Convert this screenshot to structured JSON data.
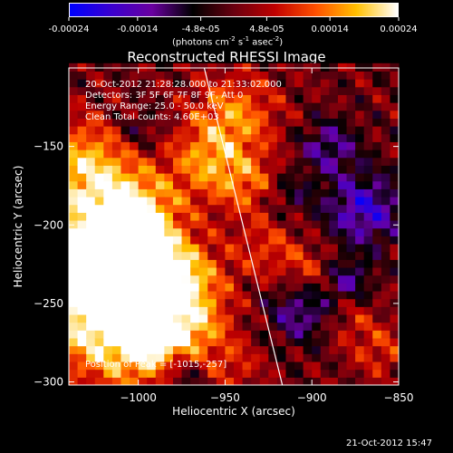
{
  "colorbar": {
    "tick_labels": [
      "-0.00024",
      "-0.00014",
      "-4.8e-05",
      "4.8e-05",
      "0.00014",
      "0.00024"
    ],
    "tick_values": [
      -0.00024,
      -0.00014,
      -4.8e-05,
      4.8e-05,
      0.00014,
      0.00024
    ],
    "range": [
      -0.00024,
      0.00024
    ],
    "unit_prefix": "(photons cm",
    "unit_exp1": "-2",
    "unit_mid": " s",
    "unit_exp2": "-1",
    "unit_mid2": " asec",
    "unit_exp3": "-2",
    "unit_suffix": ")",
    "colormap": [
      "#0000ff",
      "#3a00d0",
      "#6a00a0",
      "#000000",
      "#6a0010",
      "#c00000",
      "#ff5000",
      "#ffc000",
      "#ffffff"
    ]
  },
  "chart_data": {
    "type": "heatmap",
    "title": "Reconstructed RHESSI Image",
    "xlabel": "Heliocentric X (arcsec)",
    "ylabel": "Heliocentric Y (arcsec)",
    "xlim": [
      -1040,
      -850
    ],
    "ylim": [
      -302,
      -100
    ],
    "x_ticks": [
      -1000,
      -950,
      -900,
      -850
    ],
    "y_ticks": [
      -300,
      -250,
      -200,
      -150
    ],
    "peak": [
      -1015,
      -257
    ],
    "limb_line": [
      [
        -962,
        -100
      ],
      [
        -917,
        -302
      ]
    ]
  },
  "annotations": {
    "time_range": "20-Oct-2012 21:28:28.000 to 21:33:02.000",
    "detectors": "Detectors: 3F 5F 6F 7F 8F 9F, Att 0",
    "energy": "Energy Range: 25.0 - 50.0 keV",
    "clean": "Clean     Total counts: 4.60E+03",
    "peak": "Position of Peak = [-1015,-257]"
  },
  "footer": {
    "date": "21-Oct-2012 15:47"
  }
}
